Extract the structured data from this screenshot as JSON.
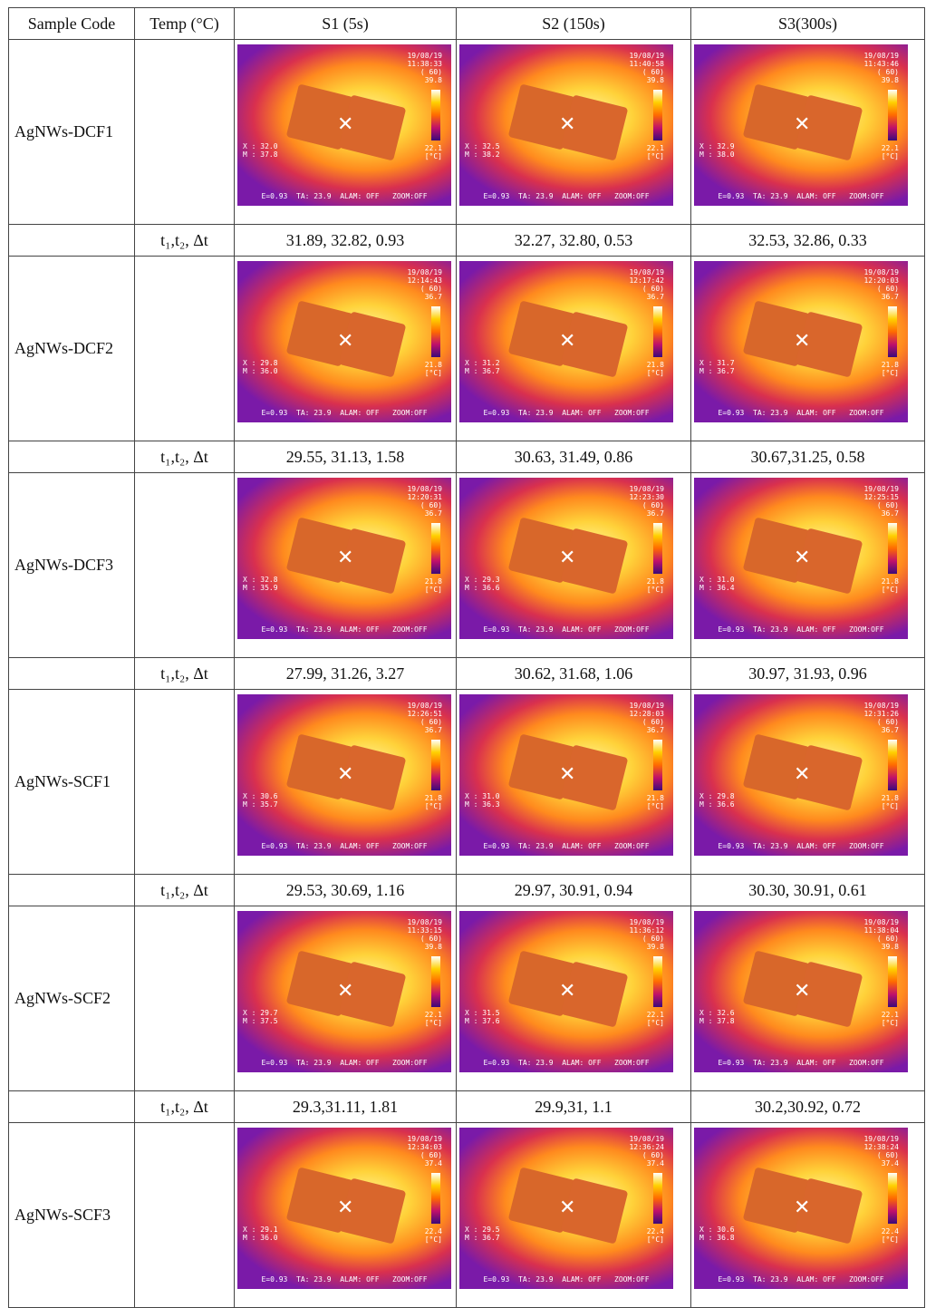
{
  "header": {
    "sample_code": "Sample Code",
    "temp": "Temp (°C)",
    "s1": "S1 (5s)",
    "s2": "S2 (150s)",
    "s3": "S3(300s)"
  },
  "metric_label": "t₁,t₂, Δt",
  "rows": [
    {
      "code": "AgNWs-DCF1",
      "values": [
        "31.89, 32.82, 0.93",
        "32.27, 32.80, 0.53",
        "32.53, 32.86, 0.33"
      ],
      "imgs": [
        {
          "date": "19/08/19",
          "time": "11:38:33",
          "max": "39.8",
          "min": "22.1",
          "xm": "X : 32.0\nM : 37.8"
        },
        {
          "date": "19/08/19",
          "time": "11:40:58",
          "max": "39.8",
          "min": "22.1",
          "xm": "X : 32.5\nM : 38.2"
        },
        {
          "date": "19/08/19",
          "time": "11:43:46",
          "max": "39.8",
          "min": "22.1",
          "xm": "X : 32.9\nM : 38.0"
        }
      ]
    },
    {
      "code": "AgNWs-DCF2",
      "values": [
        "29.55, 31.13, 1.58",
        "30.63, 31.49, 0.86",
        "30.67,31.25, 0.58"
      ],
      "imgs": [
        {
          "date": "19/08/19",
          "time": "12:14:43",
          "max": "36.7",
          "min": "21.8",
          "xm": "X : 29.8\nM : 36.0"
        },
        {
          "date": "19/08/19",
          "time": "12:17:42",
          "max": "36.7",
          "min": "21.8",
          "xm": "X : 31.2\nM : 36.7"
        },
        {
          "date": "19/08/19",
          "time": "12:20:03",
          "max": "36.7",
          "min": "21.8",
          "xm": "X : 31.7\nM : 36.7"
        }
      ]
    },
    {
      "code": "AgNWs-DCF3",
      "values": [
        "27.99, 31.26, 3.27",
        "30.62, 31.68, 1.06",
        "30.97, 31.93, 0.96"
      ],
      "imgs": [
        {
          "date": "19/08/19",
          "time": "12:20:31",
          "max": "36.7",
          "min": "21.8",
          "xm": "X : 32.8\nM : 35.9"
        },
        {
          "date": "19/08/19",
          "time": "12:23:30",
          "max": "36.7",
          "min": "21.8",
          "xm": "X : 29.3\nM : 36.6"
        },
        {
          "date": "19/08/19",
          "time": "12:25:15",
          "max": "36.7",
          "min": "21.8",
          "xm": "X : 31.0\nM : 36.4"
        }
      ]
    },
    {
      "code": "AgNWs-SCF1",
      "values": [
        "29.53, 30.69, 1.16",
        "29.97, 30.91, 0.94",
        "30.30, 30.91, 0.61"
      ],
      "imgs": [
        {
          "date": "19/08/19",
          "time": "12:26:51",
          "max": "36.7",
          "min": "21.8",
          "xm": "X : 30.6\nM : 35.7"
        },
        {
          "date": "19/08/19",
          "time": "12:28:03",
          "max": "36.7",
          "min": "21.8",
          "xm": "X : 31.0\nM : 36.3"
        },
        {
          "date": "19/08/19",
          "time": "12:31:26",
          "max": "36.7",
          "min": "21.8",
          "xm": "X : 29.8\nM : 36.6"
        }
      ]
    },
    {
      "code": "AgNWs-SCF2",
      "values": [
        "29.3,31.11, 1.81",
        "29.9,31, 1.1",
        "30.2,30.92, 0.72"
      ],
      "imgs": [
        {
          "date": "19/08/19",
          "time": "11:33:15",
          "max": "39.8",
          "min": "22.1",
          "xm": "X : 29.7\nM : 37.5"
        },
        {
          "date": "19/08/19",
          "time": "11:36:12",
          "max": "39.8",
          "min": "22.1",
          "xm": "X : 31.5\nM : 37.6"
        },
        {
          "date": "19/08/19",
          "time": "11:38:04",
          "max": "39.8",
          "min": "22.1",
          "xm": "X : 32.6\nM : 37.8"
        }
      ]
    },
    {
      "code": "AgNWs-SCF3",
      "values": [],
      "imgs": [
        {
          "date": "19/08/19",
          "time": "12:34:03",
          "max": "37.4",
          "min": "22.4",
          "xm": "X : 29.1\nM : 36.0"
        },
        {
          "date": "19/08/19",
          "time": "12:36:24",
          "max": "37.4",
          "min": "22.4",
          "xm": "X : 29.5\nM : 36.7"
        },
        {
          "date": "19/08/19",
          "time": "12:38:24",
          "max": "37.4",
          "min": "22.4",
          "xm": "X : 30.6\nM : 36.8"
        }
      ]
    }
  ],
  "osd": {
    "emis": "E=0.93",
    "ta": "TA: 23.9",
    "alam": "ALAM: OFF",
    "zoom": "ZOOM:OFF",
    "range": "( 60)",
    "unit": "[°C]"
  }
}
